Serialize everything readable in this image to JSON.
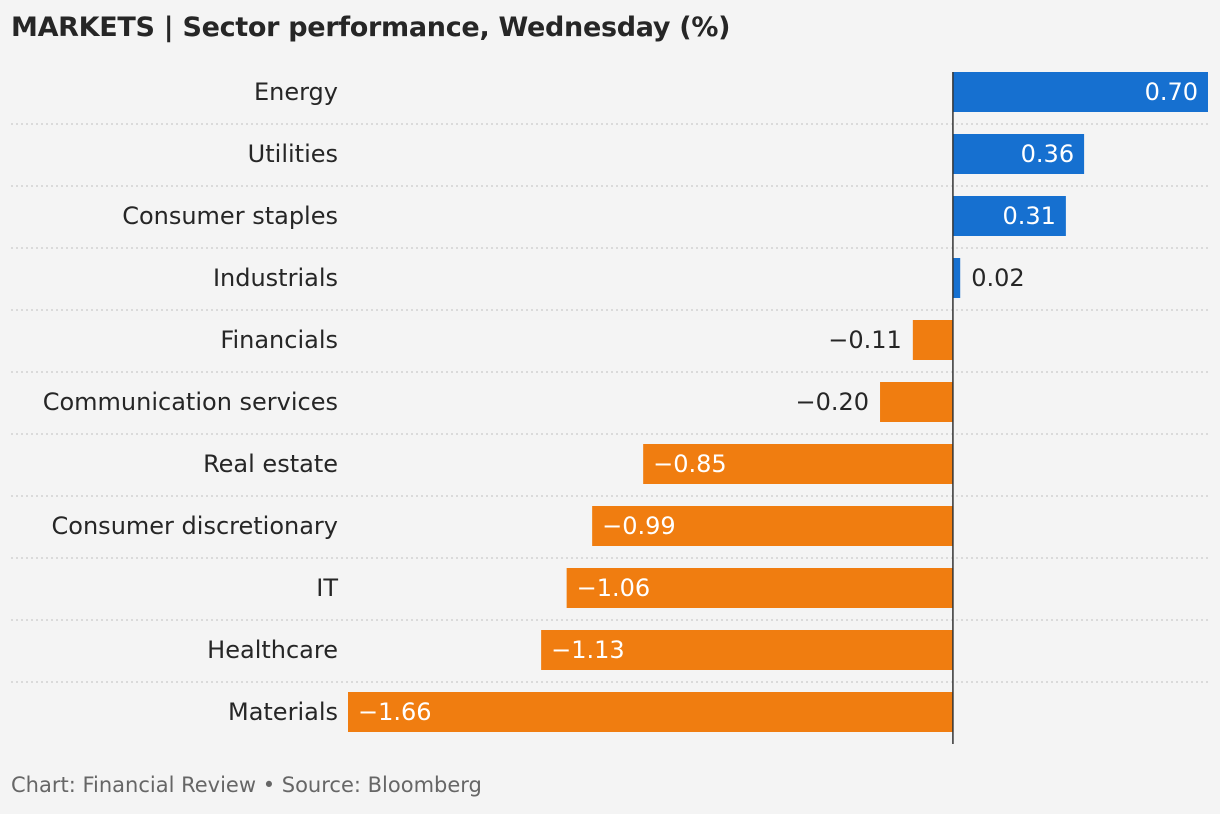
{
  "title": "MARKETS | Sector performance, Wednesday (%)",
  "footer": "Chart: Financial Review • Source: Bloomberg",
  "colors": {
    "positive": "#1670d0",
    "negative": "#f07d10",
    "axis": "#333333",
    "grid": "#c9c9c9"
  },
  "chart_data": {
    "type": "bar",
    "orientation": "horizontal",
    "title": "MARKETS | Sector performance, Wednesday (%)",
    "categories": [
      "Energy",
      "Utilities",
      "Consumer staples",
      "Industrials",
      "Financials",
      "Communication services",
      "Real estate",
      "Consumer discretionary",
      "IT",
      "Healthcare",
      "Materials"
    ],
    "values": [
      0.7,
      0.36,
      0.31,
      0.02,
      -0.11,
      -0.2,
      -0.85,
      -0.99,
      -1.06,
      -1.13,
      -1.66
    ],
    "value_labels": [
      "0.70",
      "0.36",
      "0.31",
      "0.02",
      "−0.11",
      "−0.20",
      "−0.85",
      "−0.99",
      "−1.06",
      "−1.13",
      "−1.66"
    ],
    "xlim": [
      -1.66,
      0.7
    ],
    "grid": "dotted row separators",
    "legend": "none"
  }
}
